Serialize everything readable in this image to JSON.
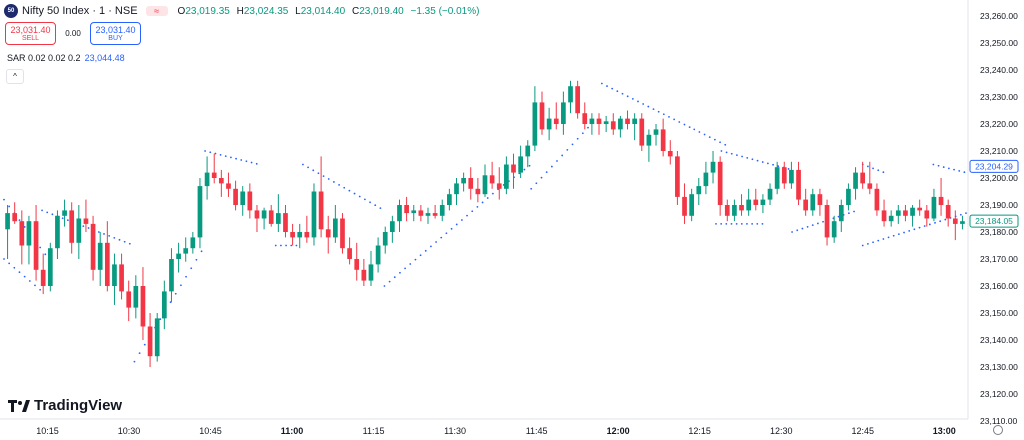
{
  "header": {
    "logo_text": "50",
    "title": "Nifty 50 Index · 1 · NSE",
    "ohlc": {
      "o_label": "O",
      "o": "23,019.35",
      "h_label": "H",
      "h": "23,024.35",
      "l_label": "L",
      "l": "23,014.40",
      "c_label": "C",
      "c": "23,019.40",
      "change": "−1.35 (−0.01%)"
    }
  },
  "trade": {
    "sell_price": "23,031.40",
    "sell_label": "SELL",
    "spread": "0.00",
    "buy_price": "23,031.40",
    "buy_label": "BUY"
  },
  "indicator": {
    "name": "SAR 0.02 0.02 0.2",
    "value": "23,044.48"
  },
  "brand": "TradingView",
  "colors": {
    "up": "#089981",
    "down": "#f23645",
    "sar": "#2962ff",
    "axis_text": "#131722"
  },
  "chart_data": {
    "type": "candlestick",
    "ylim": [
      23105,
      23265
    ],
    "y_ticks": [
      23260,
      23250,
      23240,
      23230,
      23220,
      23210,
      23200,
      23190,
      23180,
      23170,
      23160,
      23150,
      23140,
      23130,
      23120,
      23110
    ],
    "y_tick_labels": [
      "23,260.00",
      "23,250.00",
      "23,240.00",
      "23,230.00",
      "23,220.00",
      "23,210.00",
      "23,200.00",
      "23,190.00",
      "23,180.00",
      "23,170.00",
      "23,160.00",
      "23,150.00",
      "23,140.00",
      "23,130.00",
      "23,120.00",
      "23,110.00"
    ],
    "x_ticks": [
      {
        "label": "10:15",
        "min": 15,
        "bold": false
      },
      {
        "label": "10:30",
        "min": 30,
        "bold": false
      },
      {
        "label": "10:45",
        "min": 45,
        "bold": false
      },
      {
        "label": "11:00",
        "min": 60,
        "bold": true
      },
      {
        "label": "11:15",
        "min": 75,
        "bold": false
      },
      {
        "label": "11:30",
        "min": 90,
        "bold": false
      },
      {
        "label": "11:45",
        "min": 105,
        "bold": false
      },
      {
        "label": "12:00",
        "min": 120,
        "bold": true
      },
      {
        "label": "12:15",
        "min": 135,
        "bold": false
      },
      {
        "label": "12:30",
        "min": 150,
        "bold": false
      },
      {
        "label": "12:45",
        "min": 165,
        "bold": false
      },
      {
        "label": "13:00",
        "min": 180,
        "bold": true
      }
    ],
    "x_domain_minutes": [
      7,
      184
    ],
    "price_labels": [
      {
        "value": 23204.29,
        "text": "23,204.29",
        "color": "#2962ff",
        "fill": "#ffffff"
      },
      {
        "value": 23184.05,
        "text": "23,184.05",
        "color": "#089981",
        "fill": "#ffffff"
      }
    ],
    "sar_segments": [
      {
        "from": 7,
        "to": 16,
        "start": 23192,
        "end": 23168
      },
      {
        "from": 7,
        "to": 14,
        "start": 23170,
        "end": 23158
      },
      {
        "from": 14,
        "to": 31,
        "start": 23188,
        "end": 23175
      },
      {
        "from": 31,
        "to": 44,
        "start": 23132,
        "end": 23175
      },
      {
        "from": 44,
        "to": 54,
        "start": 23210,
        "end": 23205
      },
      {
        "from": 57,
        "to": 61,
        "start": 23175,
        "end": 23175
      },
      {
        "from": 62,
        "to": 77,
        "start": 23205,
        "end": 23188
      },
      {
        "from": 77,
        "to": 98,
        "start": 23160,
        "end": 23196
      },
      {
        "from": 98,
        "to": 104,
        "start": 23196,
        "end": 23205
      },
      {
        "from": 104,
        "to": 116,
        "start": 23196,
        "end": 23222
      },
      {
        "from": 117,
        "to": 134,
        "start": 23235,
        "end": 23218
      },
      {
        "from": 134,
        "to": 140,
        "start": 23218,
        "end": 23212
      },
      {
        "from": 138,
        "to": 147,
        "start": 23183,
        "end": 23183
      },
      {
        "from": 139,
        "to": 152,
        "start": 23210,
        "end": 23203
      },
      {
        "from": 152,
        "to": 164,
        "start": 23180,
        "end": 23188
      },
      {
        "from": 165,
        "to": 169,
        "start": 23205,
        "end": 23202
      },
      {
        "from": 165,
        "to": 184,
        "start": 23175,
        "end": 23187
      },
      {
        "from": 178,
        "to": 184,
        "start": 23205,
        "end": 23202
      }
    ],
    "candles": [
      {
        "o": 23181,
        "h": 23190,
        "l": 23170,
        "c": 23187
      },
      {
        "o": 23187,
        "h": 23191,
        "l": 23183,
        "c": 23184
      },
      {
        "o": 23184,
        "h": 23188,
        "l": 23168,
        "c": 23175
      },
      {
        "o": 23175,
        "h": 23186,
        "l": 23168,
        "c": 23184
      },
      {
        "o": 23184,
        "h": 23190,
        "l": 23162,
        "c": 23166
      },
      {
        "o": 23166,
        "h": 23172,
        "l": 23157,
        "c": 23160
      },
      {
        "o": 23160,
        "h": 23176,
        "l": 23158,
        "c": 23174
      },
      {
        "o": 23174,
        "h": 23188,
        "l": 23170,
        "c": 23186
      },
      {
        "o": 23186,
        "h": 23192,
        "l": 23182,
        "c": 23188
      },
      {
        "o": 23188,
        "h": 23191,
        "l": 23172,
        "c": 23176
      },
      {
        "o": 23176,
        "h": 23190,
        "l": 23170,
        "c": 23185
      },
      {
        "o": 23185,
        "h": 23192,
        "l": 23180,
        "c": 23183
      },
      {
        "o": 23183,
        "h": 23186,
        "l": 23162,
        "c": 23166
      },
      {
        "o": 23166,
        "h": 23180,
        "l": 23160,
        "c": 23176
      },
      {
        "o": 23176,
        "h": 23184,
        "l": 23158,
        "c": 23160
      },
      {
        "o": 23160,
        "h": 23172,
        "l": 23153,
        "c": 23168
      },
      {
        "o": 23168,
        "h": 23172,
        "l": 23155,
        "c": 23158
      },
      {
        "o": 23158,
        "h": 23162,
        "l": 23147,
        "c": 23152
      },
      {
        "o": 23152,
        "h": 23164,
        "l": 23148,
        "c": 23160
      },
      {
        "o": 23160,
        "h": 23167,
        "l": 23140,
        "c": 23145
      },
      {
        "o": 23145,
        "h": 23150,
        "l": 23130,
        "c": 23134
      },
      {
        "o": 23134,
        "h": 23150,
        "l": 23132,
        "c": 23148
      },
      {
        "o": 23148,
        "h": 23162,
        "l": 23144,
        "c": 23158
      },
      {
        "o": 23158,
        "h": 23174,
        "l": 23154,
        "c": 23170
      },
      {
        "o": 23170,
        "h": 23176,
        "l": 23165,
        "c": 23172
      },
      {
        "o": 23172,
        "h": 23178,
        "l": 23169,
        "c": 23174
      },
      {
        "o": 23174,
        "h": 23180,
        "l": 23172,
        "c": 23178
      },
      {
        "o": 23178,
        "h": 23200,
        "l": 23174,
        "c": 23197
      },
      {
        "o": 23197,
        "h": 23208,
        "l": 23192,
        "c": 23202
      },
      {
        "o": 23202,
        "h": 23209,
        "l": 23198,
        "c": 23200
      },
      {
        "o": 23200,
        "h": 23203,
        "l": 23193,
        "c": 23198
      },
      {
        "o": 23198,
        "h": 23202,
        "l": 23193,
        "c": 23196
      },
      {
        "o": 23196,
        "h": 23199,
        "l": 23188,
        "c": 23190
      },
      {
        "o": 23190,
        "h": 23197,
        "l": 23186,
        "c": 23195
      },
      {
        "o": 23195,
        "h": 23198,
        "l": 23185,
        "c": 23188
      },
      {
        "o": 23188,
        "h": 23190,
        "l": 23180,
        "c": 23185
      },
      {
        "o": 23185,
        "h": 23189,
        "l": 23181,
        "c": 23188
      },
      {
        "o": 23188,
        "h": 23190,
        "l": 23182,
        "c": 23183
      },
      {
        "o": 23183,
        "h": 23194,
        "l": 23180,
        "c": 23187
      },
      {
        "o": 23187,
        "h": 23190,
        "l": 23178,
        "c": 23180
      },
      {
        "o": 23180,
        "h": 23183,
        "l": 23175,
        "c": 23178
      },
      {
        "o": 23178,
        "h": 23183,
        "l": 23174,
        "c": 23180
      },
      {
        "o": 23180,
        "h": 23186,
        "l": 23176,
        "c": 23178
      },
      {
        "o": 23178,
        "h": 23198,
        "l": 23175,
        "c": 23195
      },
      {
        "o": 23195,
        "h": 23208,
        "l": 23178,
        "c": 23181
      },
      {
        "o": 23181,
        "h": 23186,
        "l": 23172,
        "c": 23178
      },
      {
        "o": 23178,
        "h": 23190,
        "l": 23176,
        "c": 23185
      },
      {
        "o": 23185,
        "h": 23187,
        "l": 23172,
        "c": 23174
      },
      {
        "o": 23174,
        "h": 23178,
        "l": 23168,
        "c": 23170
      },
      {
        "o": 23170,
        "h": 23176,
        "l": 23162,
        "c": 23166
      },
      {
        "o": 23166,
        "h": 23170,
        "l": 23160,
        "c": 23162
      },
      {
        "o": 23162,
        "h": 23173,
        "l": 23160,
        "c": 23168
      },
      {
        "o": 23168,
        "h": 23178,
        "l": 23165,
        "c": 23175
      },
      {
        "o": 23175,
        "h": 23182,
        "l": 23172,
        "c": 23180
      },
      {
        "o": 23180,
        "h": 23186,
        "l": 23176,
        "c": 23184
      },
      {
        "o": 23184,
        "h": 23192,
        "l": 23180,
        "c": 23190
      },
      {
        "o": 23190,
        "h": 23193,
        "l": 23184,
        "c": 23187
      },
      {
        "o": 23187,
        "h": 23190,
        "l": 23184,
        "c": 23188
      },
      {
        "o": 23188,
        "h": 23190,
        "l": 23184,
        "c": 23186
      },
      {
        "o": 23186,
        "h": 23189,
        "l": 23183,
        "c": 23187
      },
      {
        "o": 23187,
        "h": 23190,
        "l": 23185,
        "c": 23186
      },
      {
        "o": 23186,
        "h": 23192,
        "l": 23184,
        "c": 23190
      },
      {
        "o": 23190,
        "h": 23196,
        "l": 23188,
        "c": 23194
      },
      {
        "o": 23194,
        "h": 23200,
        "l": 23190,
        "c": 23198
      },
      {
        "o": 23198,
        "h": 23202,
        "l": 23195,
        "c": 23200
      },
      {
        "o": 23200,
        "h": 23204,
        "l": 23192,
        "c": 23196
      },
      {
        "o": 23196,
        "h": 23200,
        "l": 23191,
        "c": 23194
      },
      {
        "o": 23194,
        "h": 23205,
        "l": 23193,
        "c": 23201
      },
      {
        "o": 23201,
        "h": 23206,
        "l": 23196,
        "c": 23198
      },
      {
        "o": 23198,
        "h": 23204,
        "l": 23192,
        "c": 23196
      },
      {
        "o": 23196,
        "h": 23208,
        "l": 23194,
        "c": 23205
      },
      {
        "o": 23205,
        "h": 23209,
        "l": 23196,
        "c": 23202
      },
      {
        "o": 23202,
        "h": 23212,
        "l": 23200,
        "c": 23208
      },
      {
        "o": 23208,
        "h": 23214,
        "l": 23204,
        "c": 23212
      },
      {
        "o": 23212,
        "h": 23234,
        "l": 23210,
        "c": 23228
      },
      {
        "o": 23228,
        "h": 23232,
        "l": 23216,
        "c": 23218
      },
      {
        "o": 23218,
        "h": 23226,
        "l": 23214,
        "c": 23222
      },
      {
        "o": 23222,
        "h": 23228,
        "l": 23218,
        "c": 23220
      },
      {
        "o": 23220,
        "h": 23232,
        "l": 23216,
        "c": 23228
      },
      {
        "o": 23228,
        "h": 23236,
        "l": 23224,
        "c": 23234
      },
      {
        "o": 23234,
        "h": 23236,
        "l": 23222,
        "c": 23224
      },
      {
        "o": 23224,
        "h": 23228,
        "l": 23218,
        "c": 23220
      },
      {
        "o": 23220,
        "h": 23224,
        "l": 23216,
        "c": 23222
      },
      {
        "o": 23222,
        "h": 23224,
        "l": 23216,
        "c": 23220
      },
      {
        "o": 23220,
        "h": 23223,
        "l": 23217,
        "c": 23221
      },
      {
        "o": 23221,
        "h": 23224,
        "l": 23216,
        "c": 23218
      },
      {
        "o": 23218,
        "h": 23223,
        "l": 23215,
        "c": 23222
      },
      {
        "o": 23222,
        "h": 23225,
        "l": 23218,
        "c": 23220
      },
      {
        "o": 23220,
        "h": 23224,
        "l": 23214,
        "c": 23222
      },
      {
        "o": 23222,
        "h": 23224,
        "l": 23210,
        "c": 23212
      },
      {
        "o": 23212,
        "h": 23218,
        "l": 23206,
        "c": 23216
      },
      {
        "o": 23216,
        "h": 23220,
        "l": 23212,
        "c": 23218
      },
      {
        "o": 23218,
        "h": 23222,
        "l": 23208,
        "c": 23210
      },
      {
        "o": 23210,
        "h": 23214,
        "l": 23205,
        "c": 23208
      },
      {
        "o": 23208,
        "h": 23210,
        "l": 23190,
        "c": 23193
      },
      {
        "o": 23193,
        "h": 23198,
        "l": 23183,
        "c": 23186
      },
      {
        "o": 23186,
        "h": 23196,
        "l": 23184,
        "c": 23194
      },
      {
        "o": 23194,
        "h": 23200,
        "l": 23190,
        "c": 23197
      },
      {
        "o": 23197,
        "h": 23206,
        "l": 23194,
        "c": 23202
      },
      {
        "o": 23202,
        "h": 23210,
        "l": 23198,
        "c": 23206
      },
      {
        "o": 23206,
        "h": 23208,
        "l": 23186,
        "c": 23190
      },
      {
        "o": 23190,
        "h": 23192,
        "l": 23184,
        "c": 23186
      },
      {
        "o": 23186,
        "h": 23192,
        "l": 23184,
        "c": 23190
      },
      {
        "o": 23190,
        "h": 23194,
        "l": 23186,
        "c": 23188
      },
      {
        "o": 23188,
        "h": 23196,
        "l": 23186,
        "c": 23192
      },
      {
        "o": 23192,
        "h": 23196,
        "l": 23188,
        "c": 23190
      },
      {
        "o": 23190,
        "h": 23194,
        "l": 23187,
        "c": 23192
      },
      {
        "o": 23192,
        "h": 23198,
        "l": 23190,
        "c": 23196
      },
      {
        "o": 23196,
        "h": 23206,
        "l": 23194,
        "c": 23204
      },
      {
        "o": 23204,
        "h": 23206,
        "l": 23196,
        "c": 23198
      },
      {
        "o": 23198,
        "h": 23206,
        "l": 23196,
        "c": 23203
      },
      {
        "o": 23203,
        "h": 23206,
        "l": 23190,
        "c": 23192
      },
      {
        "o": 23192,
        "h": 23196,
        "l": 23186,
        "c": 23188
      },
      {
        "o": 23188,
        "h": 23196,
        "l": 23186,
        "c": 23194
      },
      {
        "o": 23194,
        "h": 23196,
        "l": 23186,
        "c": 23190
      },
      {
        "o": 23190,
        "h": 23192,
        "l": 23175,
        "c": 23178
      },
      {
        "o": 23178,
        "h": 23186,
        "l": 23176,
        "c": 23184
      },
      {
        "o": 23184,
        "h": 23192,
        "l": 23180,
        "c": 23190
      },
      {
        "o": 23190,
        "h": 23198,
        "l": 23188,
        "c": 23196
      },
      {
        "o": 23196,
        "h": 23204,
        "l": 23192,
        "c": 23202
      },
      {
        "o": 23202,
        "h": 23206,
        "l": 23196,
        "c": 23198
      },
      {
        "o": 23198,
        "h": 23206,
        "l": 23194,
        "c": 23196
      },
      {
        "o": 23196,
        "h": 23198,
        "l": 23186,
        "c": 23188
      },
      {
        "o": 23188,
        "h": 23192,
        "l": 23182,
        "c": 23184
      },
      {
        "o": 23184,
        "h": 23188,
        "l": 23182,
        "c": 23186
      },
      {
        "o": 23186,
        "h": 23190,
        "l": 23183,
        "c": 23188
      },
      {
        "o": 23188,
        "h": 23190,
        "l": 23184,
        "c": 23186
      },
      {
        "o": 23186,
        "h": 23190,
        "l": 23182,
        "c": 23189
      },
      {
        "o": 23189,
        "h": 23192,
        "l": 23186,
        "c": 23188
      },
      {
        "o": 23188,
        "h": 23190,
        "l": 23182,
        "c": 23185
      },
      {
        "o": 23185,
        "h": 23196,
        "l": 23184,
        "c": 23193
      },
      {
        "o": 23193,
        "h": 23200,
        "l": 23186,
        "c": 23190
      },
      {
        "o": 23190,
        "h": 23192,
        "l": 23182,
        "c": 23185
      },
      {
        "o": 23185,
        "h": 23188,
        "l": 23177,
        "c": 23183
      },
      {
        "o": 23183,
        "h": 23186,
        "l": 23181,
        "c": 23184
      }
    ]
  }
}
